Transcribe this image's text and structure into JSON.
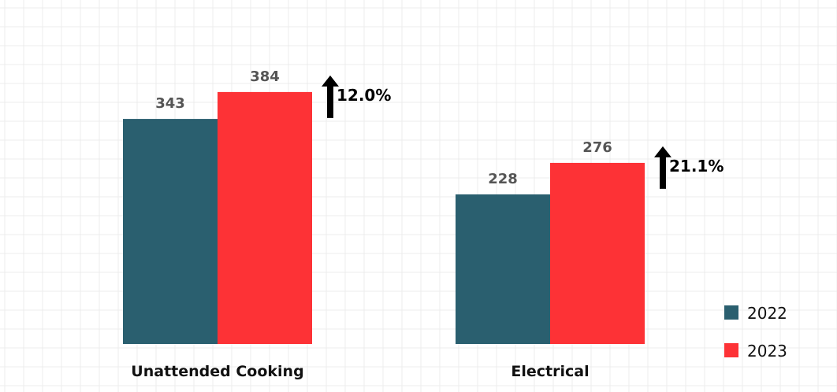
{
  "chart_data": {
    "type": "bar",
    "categories": [
      "Unattended Cooking",
      "Electrical"
    ],
    "series": [
      {
        "name": "2022",
        "values": [
          343,
          228
        ],
        "color": "#2a5f6f"
      },
      {
        "name": "2023",
        "values": [
          384,
          276
        ],
        "color": "#fd3236"
      }
    ],
    "annotations": [
      {
        "category": "Unattended Cooking",
        "text": "12.0%",
        "icon": "up-arrow-icon"
      },
      {
        "category": "Electrical",
        "text": "21.1%",
        "icon": "up-arrow-icon"
      }
    ],
    "ylim": [
      0,
      400
    ],
    "grid": true,
    "legend_position": "bottom-right",
    "title": "",
    "xlabel": "",
    "ylabel": ""
  }
}
